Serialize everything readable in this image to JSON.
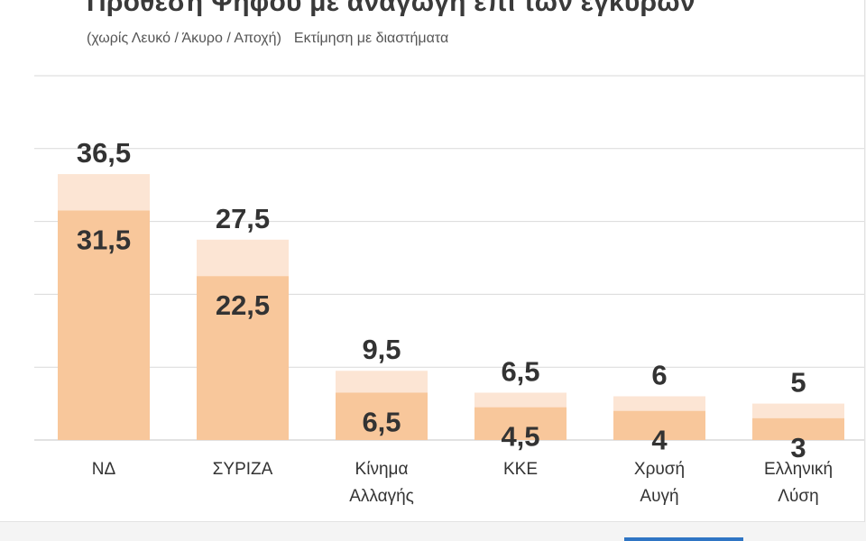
{
  "header": {
    "title": "Πρόθεση Ψήφου με αναγωγή επί των εγκύρων",
    "subtitle_left": "(χωρίς Λευκό / Άκυρο / Αποχή)",
    "subtitle_right": "Εκτίμηση με διαστήματα"
  },
  "colors": {
    "bar_low": "#f8c79b",
    "bar_high": "#fce5d4",
    "grid": "#d9d9d9",
    "label": "#333333",
    "category": "#333333"
  },
  "chart_data": {
    "type": "bar",
    "title": "Πρόθεση Ψήφου με αναγωγή επί των εγκύρων",
    "subtitle": "(χωρίς Λευκό / Άκυρο / Αποχή) Εκτίμηση με διαστήματα",
    "categories": [
      [
        "ΝΔ"
      ],
      [
        "ΣΥΡΙΖΑ"
      ],
      [
        "Κίνημα",
        "Αλλαγής"
      ],
      [
        "ΚΚΕ"
      ],
      [
        "Χρυσή",
        "Αυγή"
      ],
      [
        "Ελληνική",
        "Λύση"
      ]
    ],
    "low": [
      31.5,
      22.5,
      6.5,
      4.5,
      4,
      3
    ],
    "high": [
      36.5,
      27.5,
      9.5,
      6.5,
      6,
      5
    ],
    "low_labels": [
      "31,5",
      "22,5",
      "6,5",
      "4,5",
      "4",
      "3"
    ],
    "high_labels": [
      "36,5",
      "27,5",
      "9,5",
      "6,5",
      "6",
      "5"
    ],
    "ylim": [
      0,
      50
    ],
    "gridlines": [
      0,
      10,
      20,
      30,
      40,
      50
    ],
    "grid": true,
    "xlabel": "",
    "ylabel": ""
  }
}
